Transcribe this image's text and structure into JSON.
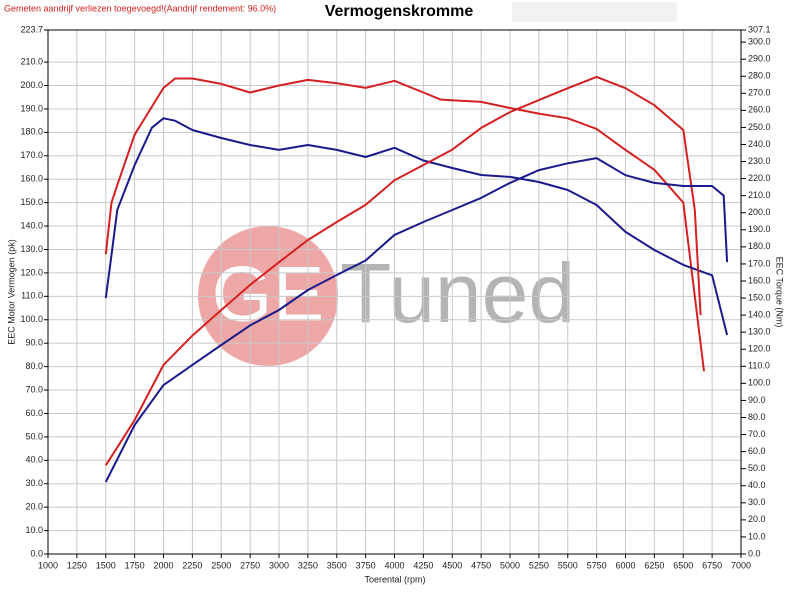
{
  "chart_data": {
    "type": "line",
    "notice": "Gemeten aandrijf verliezen toegevoegd!(Aandrijf rendement: 96.0%)",
    "title": "Vermogenskromme",
    "xlabel": "Toerental (rpm)",
    "ylabel": "EEC Motor Vermogen (pk)",
    "y2label": "EEC Torque (Nm)",
    "logo": {
      "mark": "GE",
      "text": "Tuned"
    },
    "grid": true,
    "xlim": [
      1000,
      7000
    ],
    "xticks": [
      1000,
      1250,
      1500,
      1750,
      2000,
      2250,
      2500,
      2750,
      3000,
      3250,
      3500,
      3750,
      4000,
      4250,
      4500,
      4750,
      5000,
      5250,
      5500,
      5750,
      6000,
      6250,
      6500,
      6750,
      7000
    ],
    "ylim": [
      0,
      223.7
    ],
    "yticks": [
      {
        "value": 0,
        "label": "0.0"
      },
      {
        "value": 10,
        "label": "10.0"
      },
      {
        "value": 20,
        "label": "20.0"
      },
      {
        "value": 30,
        "label": "30.0"
      },
      {
        "value": 40,
        "label": "40.0"
      },
      {
        "value": 50,
        "label": "50.0"
      },
      {
        "value": 60,
        "label": "60.0"
      },
      {
        "value": 70,
        "label": "70.0"
      },
      {
        "value": 80,
        "label": "80.0"
      },
      {
        "value": 90,
        "label": "90.0"
      },
      {
        "value": 100,
        "label": "100.0"
      },
      {
        "value": 110,
        "label": "110.0"
      },
      {
        "value": 120,
        "label": "120.0"
      },
      {
        "value": 130,
        "label": "130.0"
      },
      {
        "value": 140,
        "label": "140.0"
      },
      {
        "value": 150,
        "label": "150.0"
      },
      {
        "value": 160,
        "label": "160.0"
      },
      {
        "value": 170,
        "label": "170.0"
      },
      {
        "value": 180,
        "label": "180.0"
      },
      {
        "value": 190,
        "label": "190.0"
      },
      {
        "value": 200,
        "label": "200.0"
      },
      {
        "value": 210,
        "label": "210.0"
      },
      223.7
    ],
    "y2lim": [
      0,
      307.1
    ],
    "y2ticks": [
      {
        "value": 0,
        "label": "0.0"
      },
      {
        "value": 10,
        "label": "10.0"
      },
      {
        "value": 20,
        "label": "20.0"
      },
      {
        "value": 30,
        "label": "30.0"
      },
      {
        "value": 40,
        "label": "40.0"
      },
      {
        "value": 50,
        "label": "50.0"
      },
      {
        "value": 60,
        "label": "60.0"
      },
      {
        "value": 70,
        "label": "70.0"
      },
      {
        "value": 80,
        "label": "80.0"
      },
      {
        "value": 90,
        "label": "90.0"
      },
      {
        "value": 100,
        "label": "100.0"
      },
      {
        "value": 110,
        "label": "110.0"
      },
      {
        "value": 120,
        "label": "120.0"
      },
      {
        "value": 130,
        "label": "130.0"
      },
      {
        "value": 140,
        "label": "140.0"
      },
      {
        "value": 150,
        "label": "150.0"
      },
      {
        "value": 160,
        "label": "160.0"
      },
      {
        "value": 170,
        "label": "170.0"
      },
      {
        "value": 180,
        "label": "180.0"
      },
      {
        "value": 190,
        "label": "190.0"
      },
      {
        "value": 200,
        "label": "200.0"
      },
      {
        "value": 210,
        "label": "210.0"
      },
      {
        "value": 220,
        "label": "220.0"
      },
      {
        "value": 230,
        "label": "230.0"
      },
      {
        "value": 240,
        "label": "240.0"
      },
      {
        "value": 250,
        "label": "250.0"
      },
      {
        "value": 260,
        "label": "260.0"
      },
      {
        "value": 270,
        "label": "270.0"
      },
      {
        "value": 280,
        "label": "280.0"
      },
      {
        "value": 290,
        "label": "290.0"
      },
      {
        "value": 300,
        "label": "300.0"
      },
      307.1
    ],
    "series": [
      {
        "color": "#d42020",
        "axis": "y",
        "x": [
          1500,
          1550,
          1600,
          1750,
          2000,
          2100,
          2250,
          2500,
          2750,
          3000,
          3250,
          3500,
          3750,
          4000,
          4250,
          4400,
          4750,
          5000,
          5250,
          5500,
          5750,
          6000,
          6250,
          6500,
          6680
        ],
        "values": [
          128,
          150,
          157.5,
          179,
          199,
          203,
          203,
          200.7,
          197,
          200,
          202.4,
          201,
          199,
          202,
          197,
          194,
          193,
          190.4,
          188,
          186,
          181.5,
          172.5,
          164,
          150,
          78
        ]
      },
      {
        "color": "#1a1a8c",
        "axis": "y",
        "x": [
          1500,
          1550,
          1600,
          1750,
          1900,
          2000,
          2100,
          2250,
          2500,
          2750,
          3000,
          3250,
          3500,
          3750,
          4000,
          4250,
          4500,
          4750,
          5000,
          5250,
          5500,
          5750,
          6000,
          6250,
          6500,
          6750,
          6880
        ],
        "values": [
          109.3,
          127.7,
          146.9,
          166,
          182,
          186,
          185,
          181,
          177.6,
          174.6,
          172.5,
          174.6,
          172.5,
          169.5,
          173.4,
          168,
          164.8,
          161.8,
          161,
          158.8,
          155.4,
          149,
          137.5,
          129.8,
          123.4,
          119,
          93.5
        ]
      },
      {
        "color": "#d42020",
        "axis": "y2",
        "x": [
          1500,
          1750,
          2000,
          2250,
          2500,
          2750,
          3000,
          3250,
          3500,
          3750,
          4000,
          4250,
          4500,
          4750,
          5000,
          5250,
          5500,
          5750,
          6000,
          6250,
          6500,
          6600,
          6650
        ],
        "values": [
          52,
          78.5,
          110.8,
          128,
          143,
          157.7,
          171,
          184,
          194.6,
          204.6,
          219,
          228,
          237,
          249.7,
          259,
          266,
          273,
          279.6,
          273,
          263,
          248.5,
          201.6,
          140
        ]
      },
      {
        "color": "#1a1a8c",
        "axis": "y2",
        "x": [
          1500,
          1750,
          2000,
          2250,
          2500,
          2750,
          3000,
          3250,
          3500,
          3750,
          4000,
          4250,
          4500,
          4750,
          5000,
          5250,
          5500,
          5750,
          6000,
          6250,
          6500,
          6750,
          6850,
          6880
        ],
        "values": [
          42.2,
          75.6,
          99,
          110.8,
          122.5,
          134,
          143,
          154.7,
          163.5,
          172,
          187,
          194.6,
          201.6,
          208.7,
          217.5,
          225,
          229,
          232,
          222,
          217.5,
          215.7,
          215.7,
          210,
          171
        ]
      }
    ]
  }
}
